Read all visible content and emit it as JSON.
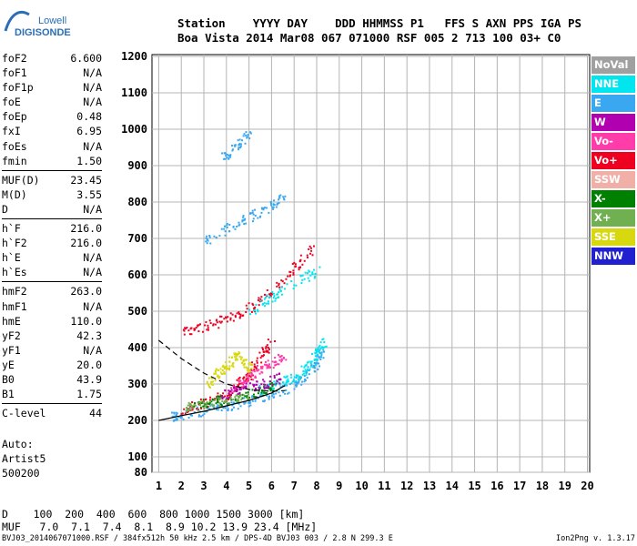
{
  "logo": {
    "line1": "Lowell",
    "line2": "DIGISONDE"
  },
  "header": {
    "line1": "Station    YYYY DAY    DDD HHMMSS P1   FFS S AXN PPS IGA PS",
    "line2": "Boa Vista 2014 Mar08 067 071000 RSF 005 2 713 100 03+ C0"
  },
  "params": [
    {
      "group": [
        {
          "k": "foF2",
          "v": "6.600"
        },
        {
          "k": "foF1",
          "v": "N/A"
        },
        {
          "k": "foF1p",
          "v": "N/A"
        },
        {
          "k": "foE",
          "v": "N/A"
        },
        {
          "k": "foEp",
          "v": "0.48"
        },
        {
          "k": "fxI",
          "v": "6.95"
        },
        {
          "k": "foEs",
          "v": "N/A"
        },
        {
          "k": "fmin",
          "v": "1.50"
        }
      ]
    },
    {
      "group": [
        {
          "k": "MUF(D)",
          "v": "23.45"
        },
        {
          "k": "M(D)",
          "v": "3.55"
        },
        {
          "k": "D",
          "v": "N/A"
        }
      ]
    },
    {
      "group": [
        {
          "k": "h`F",
          "v": "216.0"
        },
        {
          "k": "h`F2",
          "v": "216.0"
        },
        {
          "k": "h`E",
          "v": "N/A"
        },
        {
          "k": "h`Es",
          "v": "N/A"
        }
      ]
    },
    {
      "group": [
        {
          "k": "hmF2",
          "v": "263.0"
        },
        {
          "k": "hmF1",
          "v": "N/A"
        },
        {
          "k": "hmE",
          "v": "110.0"
        },
        {
          "k": "yF2",
          "v": "42.3"
        },
        {
          "k": "yF1",
          "v": "N/A"
        },
        {
          "k": "yE",
          "v": "20.0"
        },
        {
          "k": "B0",
          "v": "43.9"
        },
        {
          "k": "B1",
          "v": "1.75"
        }
      ]
    },
    {
      "group": [
        {
          "k": "C-level",
          "v": "44"
        }
      ]
    }
  ],
  "auto": [
    "Auto:",
    "Artist5",
    "500200"
  ],
  "bottom_table": {
    "row1": "D    100  200  400  600  800 1000 1500 3000 [km]",
    "row2": "MUF   7.0  7.1  7.4  8.1  8.9 10.2 13.9 23.4 [MHz]"
  },
  "footer": {
    "left": "BVJ03_2014067071000.RSF / 384fx512h 50 kHz 2.5 km / DPS-4D BVJ03 003 / 2.8 N 299.3 E",
    "right": "Ion2Png v. 1.3.17"
  },
  "legend": [
    {
      "label": "NoVal",
      "color": "#a0a0a0"
    },
    {
      "label": "NNE",
      "color": "#00e5ee"
    },
    {
      "label": "E",
      "color": "#3aa8f0"
    },
    {
      "label": "W",
      "color": "#b000b0"
    },
    {
      "label": "Vo-",
      "color": "#ff3caa"
    },
    {
      "label": "Vo+",
      "color": "#ee0020"
    },
    {
      "label": "SSW",
      "color": "#f0b0a8"
    },
    {
      "label": "X-",
      "color": "#008000"
    },
    {
      "label": "X+",
      "color": "#70b050"
    },
    {
      "label": "SSE",
      "color": "#d8d810"
    },
    {
      "label": "NNW",
      "color": "#2020d0"
    }
  ],
  "chart_data": {
    "type": "scatter",
    "x_ticks": [
      "1",
      "2",
      "3",
      "4",
      "5",
      "6",
      "7",
      "8",
      "9",
      "10",
      "11",
      "12",
      "13",
      "14",
      "15",
      "16",
      "17",
      "18",
      "19",
      "20"
    ],
    "y_ticks": [
      "80",
      "100",
      "200",
      "300",
      "400",
      "500",
      "600",
      "700",
      "800",
      "900",
      "1000",
      "1100",
      "1200"
    ],
    "xlim": [
      0.7,
      20.1
    ],
    "ylim": [
      80,
      1200
    ],
    "x_unit": "MHz",
    "y_unit": "km",
    "grid": true,
    "traces": [
      {
        "name": "E",
        "color": "#3aa8f0",
        "points": [
          [
            1.5,
            210
          ],
          [
            2,
            218
          ],
          [
            3,
            228
          ],
          [
            4,
            240
          ],
          [
            5,
            255
          ],
          [
            6,
            275
          ],
          [
            7,
            300
          ],
          [
            7.5,
            330
          ],
          [
            8,
            360
          ],
          [
            8.2,
            400
          ]
        ]
      },
      {
        "name": "NNE",
        "color": "#00e5ee",
        "points": [
          [
            5.5,
            285
          ],
          [
            6.2,
            300
          ],
          [
            7,
            320
          ],
          [
            7.6,
            350
          ],
          [
            8,
            385
          ],
          [
            8.3,
            420
          ]
        ]
      },
      {
        "name": "Vo+",
        "color": "#ee0020",
        "points": [
          [
            2,
            230
          ],
          [
            3,
            250
          ],
          [
            4,
            270
          ],
          [
            4.5,
            300
          ],
          [
            5,
            330
          ],
          [
            5.5,
            380
          ],
          [
            6,
            420
          ]
        ]
      },
      {
        "name": "SSE",
        "color": "#d8d810",
        "points": [
          [
            3.2,
            300
          ],
          [
            3.6,
            330
          ],
          [
            4,
            350
          ],
          [
            4.4,
            380
          ],
          [
            4.8,
            360
          ],
          [
            5.1,
            330
          ]
        ]
      },
      {
        "name": "X-",
        "color": "#008000",
        "points": [
          [
            2.5,
            240
          ],
          [
            3.5,
            255
          ],
          [
            4.5,
            265
          ],
          [
            5.5,
            280
          ],
          [
            6,
            300
          ]
        ]
      },
      {
        "name": "Vo-",
        "color": "#ff3caa",
        "points": [
          [
            4.2,
            290
          ],
          [
            4.8,
            310
          ],
          [
            5.4,
            340
          ],
          [
            6,
            360
          ],
          [
            6.5,
            380
          ]
        ]
      },
      {
        "name": "W",
        "color": "#b000b0",
        "points": [
          [
            3.8,
            270
          ],
          [
            4.6,
            290
          ],
          [
            5.6,
            300
          ],
          [
            6.4,
            320
          ]
        ]
      },
      {
        "name": "X+",
        "color": "#70b050",
        "points": [
          [
            2.2,
            238
          ],
          [
            3,
            246
          ],
          [
            4,
            258
          ],
          [
            5,
            270
          ]
        ]
      },
      {
        "name": "Vo+",
        "color": "#ee0020",
        "points": [
          [
            2,
            440
          ],
          [
            3,
            460
          ],
          [
            4,
            480
          ],
          [
            5,
            510
          ],
          [
            6,
            560
          ],
          [
            7,
            620
          ],
          [
            8,
            690
          ]
        ]
      },
      {
        "name": "NNE",
        "color": "#00e5ee",
        "points": [
          [
            5,
            500
          ],
          [
            6,
            540
          ],
          [
            7,
            580
          ],
          [
            8,
            610
          ]
        ]
      },
      {
        "name": "E",
        "color": "#3aa8f0",
        "points": [
          [
            3,
            690
          ],
          [
            4,
            730
          ],
          [
            5,
            760
          ],
          [
            6,
            790
          ],
          [
            6.5,
            810
          ]
        ]
      },
      {
        "name": "E",
        "color": "#3aa8f0",
        "points": [
          [
            3.8,
            920
          ],
          [
            4.4,
            950
          ],
          [
            5,
            990
          ]
        ]
      }
    ],
    "profile": {
      "solid": [
        [
          1,
          200
        ],
        [
          2,
          213
        ],
        [
          3,
          225
        ],
        [
          4,
          240
        ],
        [
          5,
          255
        ],
        [
          6,
          275
        ],
        [
          6.6,
          296
        ]
      ],
      "dashed": [
        [
          1,
          420
        ],
        [
          2,
          370
        ],
        [
          3,
          330
        ],
        [
          4,
          300
        ],
        [
          5,
          285
        ],
        [
          6,
          280
        ],
        [
          6.6,
          282
        ]
      ]
    }
  }
}
